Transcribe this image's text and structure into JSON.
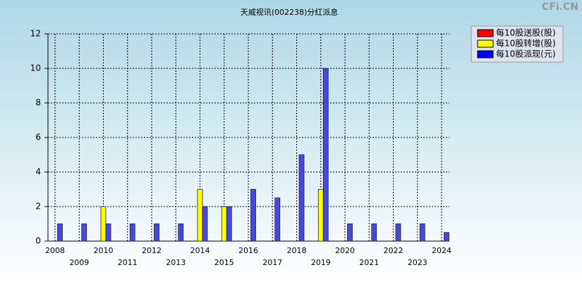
{
  "chart_data": {
    "type": "bar",
    "title": "天威视讯(002238)分红派息",
    "watermark": "CFi.CN",
    "categories": [
      "2008",
      "2009",
      "2010",
      "2011",
      "2012",
      "2013",
      "2014",
      "2015",
      "2016",
      "2017",
      "2018",
      "2019",
      "2020",
      "2021",
      "2022",
      "2023",
      "2024"
    ],
    "series": [
      {
        "name": "每10股送股(股)",
        "color": "#ff0000",
        "values": [
          null,
          null,
          null,
          null,
          null,
          null,
          null,
          null,
          null,
          null,
          null,
          null,
          null,
          null,
          null,
          null,
          null
        ]
      },
      {
        "name": "每10股转增(股)",
        "color": "#ffff00",
        "values": [
          null,
          null,
          2,
          null,
          null,
          null,
          3,
          2,
          null,
          null,
          null,
          3,
          null,
          null,
          null,
          null,
          null
        ]
      },
      {
        "name": "每10股派现(元)",
        "color": "#4848e0",
        "values": [
          1,
          1,
          1,
          1,
          1,
          1,
          2,
          2,
          3,
          2.5,
          5,
          10,
          1,
          1,
          1,
          1,
          0.5
        ]
      }
    ],
    "ylim": [
      0,
      12
    ],
    "yticks": [
      0,
      2,
      4,
      6,
      8,
      10,
      12
    ],
    "grid": true,
    "legend": "top-right"
  }
}
